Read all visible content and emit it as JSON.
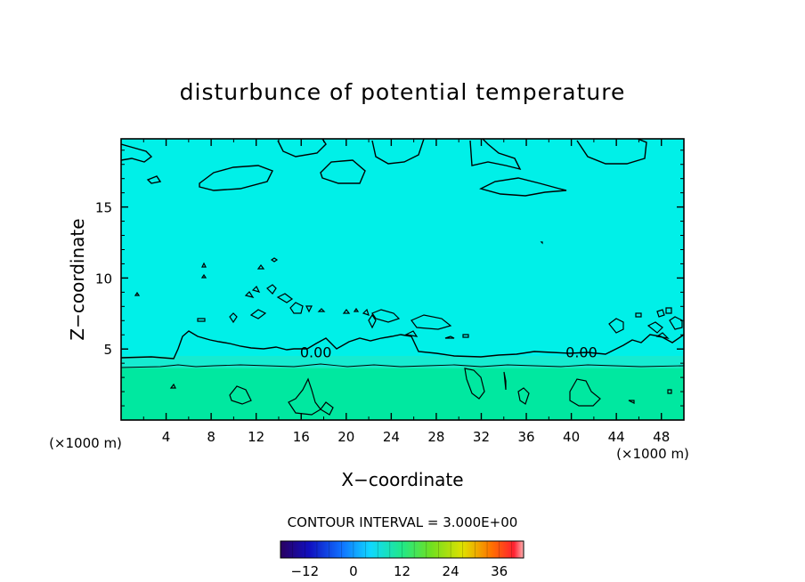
{
  "chart_data": {
    "type": "heatmap",
    "title": "disturbunce of potential temperature",
    "xlabel": "X−coordinate",
    "ylabel": "Z−coordinate",
    "x_unit": "(×1000 m)",
    "xlim": [
      0,
      50
    ],
    "ylim": [
      0,
      19.8
    ],
    "x_ticks": [
      4,
      8,
      12,
      16,
      20,
      24,
      28,
      32,
      36,
      40,
      44,
      48
    ],
    "y_ticks": [
      5,
      10,
      15
    ],
    "contour_interval_label": "CONTOUR INTERVAL = 3.000E+00",
    "contour_labels": [
      {
        "text": "0.00",
        "x": 17.3,
        "z": 4.8
      },
      {
        "text": "0.00",
        "x": 40.9,
        "z": 4.8
      }
    ],
    "colorbar": {
      "range": [
        -18,
        42
      ],
      "ticks": [
        -12,
        0,
        12,
        24,
        36
      ],
      "tick_labels": [
        "−12",
        "0",
        "12",
        "24",
        "36"
      ]
    },
    "colors": {
      "upper_field": "#00f0e8",
      "lower_field": "#00e8a0",
      "contour": "#000000"
    }
  }
}
